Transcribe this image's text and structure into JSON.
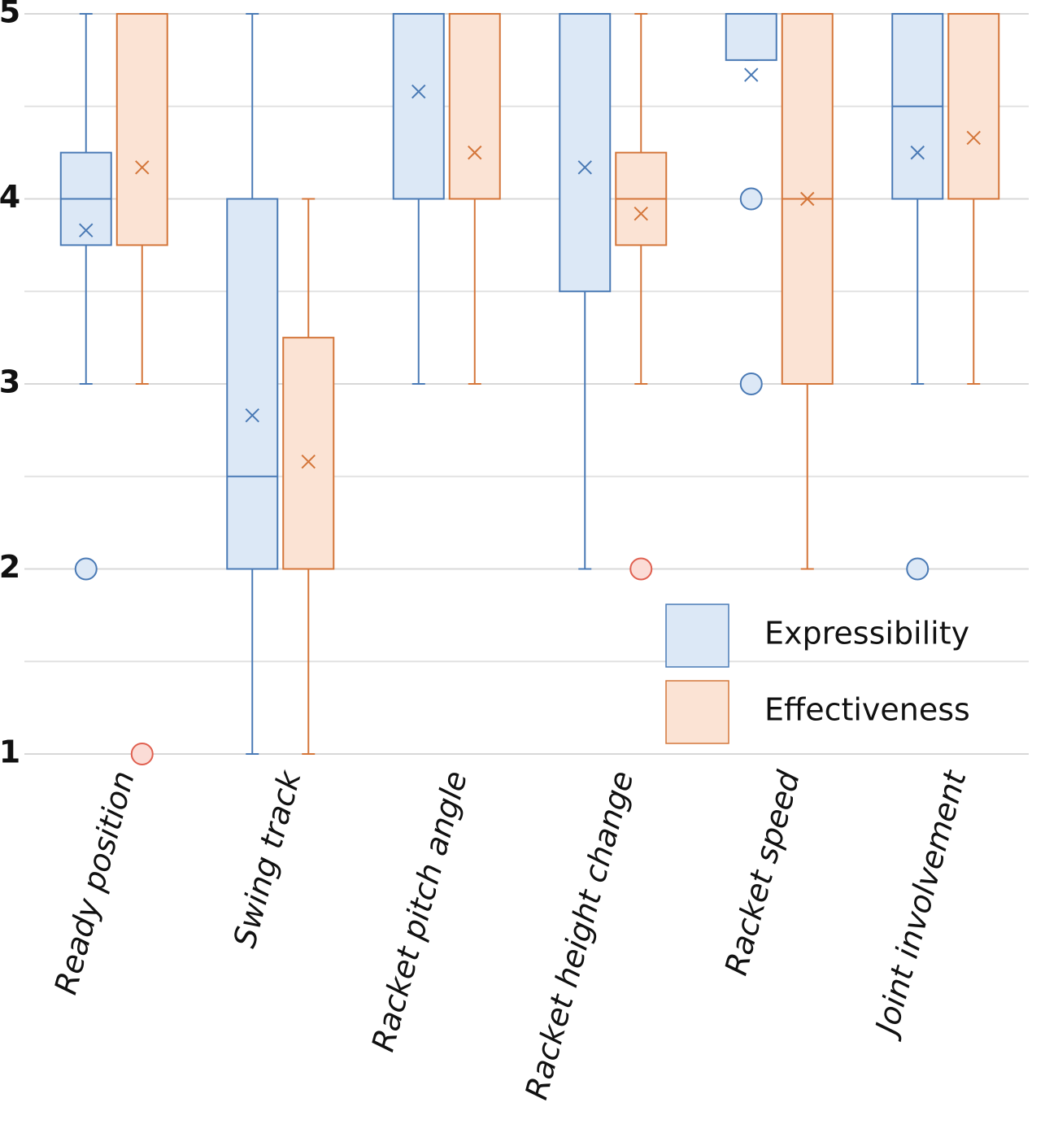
{
  "chart_data": {
    "type": "box",
    "categories": [
      "Ready position",
      "Swing track",
      "Racket pitch angle",
      "Racket height change",
      "Racket speed",
      "Joint involvement"
    ],
    "ylim": [
      1,
      5
    ],
    "yticks": [
      1,
      2,
      3,
      4,
      5
    ],
    "minor_grid": [
      1.5,
      2.5,
      3.5,
      4.5
    ],
    "grid": true,
    "legend": "lower right",
    "series": [
      {
        "name": "Expressibility",
        "color": "#4a7ab5",
        "fill": "#dce8f6",
        "outlier_color": "#4a7ab5",
        "outlier_fill": "#dce8f6",
        "whislo": [
          3,
          1,
          3,
          2,
          4.75,
          3
        ],
        "q1": [
          3.75,
          2,
          4,
          3.5,
          4.75,
          4
        ],
        "median": [
          4,
          2.5,
          5,
          5,
          5,
          4.5
        ],
        "q3": [
          4.25,
          4,
          5,
          5,
          5,
          5
        ],
        "whishi": [
          5,
          5,
          5,
          5,
          5,
          5
        ],
        "mean": [
          3.83,
          2.83,
          4.58,
          4.17,
          4.67,
          4.25
        ],
        "outliers": [
          [
            2
          ],
          [],
          [],
          [],
          [
            4,
            3
          ],
          [
            2
          ]
        ]
      },
      {
        "name": "Effectiveness",
        "color": "#d4763a",
        "fill": "#fbe3d4",
        "outlier_color": "#e06050",
        "outlier_fill": "#fbdcd6",
        "whislo": [
          3,
          1,
          3,
          3,
          2,
          3
        ],
        "q1": [
          3.75,
          2,
          4,
          3.75,
          3,
          4
        ],
        "median": [
          5,
          2,
          5,
          4,
          4,
          5
        ],
        "q3": [
          5,
          3.25,
          5,
          4.25,
          5,
          5
        ],
        "whishi": [
          5,
          4,
          5,
          5,
          5,
          5
        ],
        "mean": [
          4.17,
          2.58,
          4.25,
          3.92,
          4,
          4.33
        ],
        "outliers": [
          [
            1
          ],
          [],
          [],
          [
            2
          ],
          [],
          []
        ]
      }
    ]
  }
}
